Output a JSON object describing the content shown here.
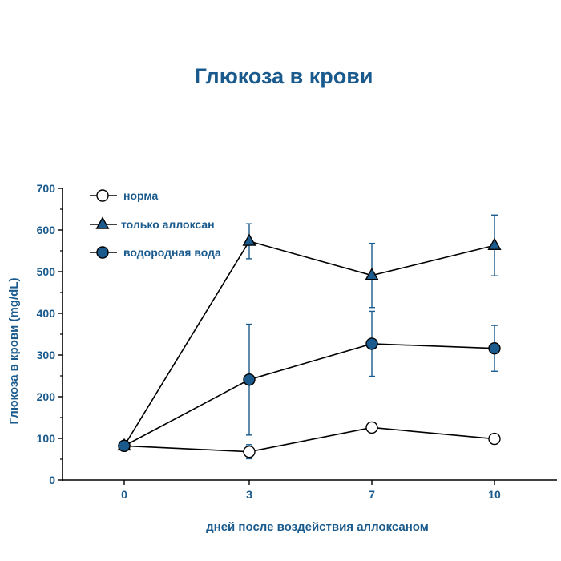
{
  "chart_data": {
    "type": "line",
    "title": "Глюкоза в крови",
    "xlabel": "дней после воздействия аллоксаном",
    "ylabel": "Глюкоза в крови  (mg/dL)",
    "categories": [
      "0",
      "3",
      "7",
      "10"
    ],
    "ylim": [
      0,
      700
    ],
    "yticks": [
      "0",
      "100",
      "200",
      "300",
      "400",
      "500",
      "600",
      "700"
    ],
    "grid": false,
    "legend_position": "top-left",
    "series": [
      {
        "name": "норма",
        "marker": "open-circle",
        "values": [
          82,
          68,
          126,
          99
        ],
        "errors": [
          null,
          17,
          null,
          null
        ]
      },
      {
        "name": "только аллоксан",
        "marker": "filled-triangle",
        "values": [
          82,
          573,
          491,
          563
        ],
        "errors": [
          null,
          42,
          77,
          73
        ]
      },
      {
        "name": "водородная вода",
        "marker": "filled-circle",
        "values": [
          82,
          241,
          327,
          316
        ],
        "errors": [
          null,
          133,
          78,
          55
        ]
      }
    ],
    "colors": {
      "text": "#1a5a8c",
      "marker_fill": "#1a5a8c",
      "line": "#000000",
      "error_bar": "#1a5a8c"
    }
  }
}
